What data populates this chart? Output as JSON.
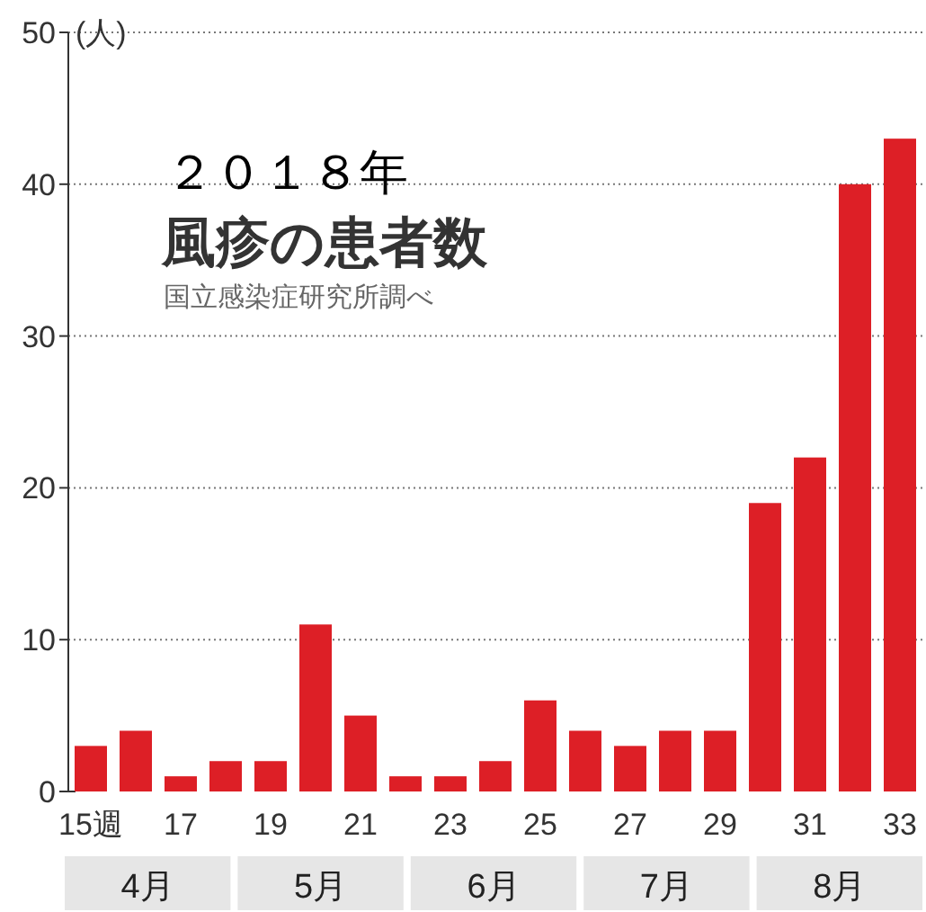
{
  "chart_data": {
    "type": "bar",
    "title": "２０１８年",
    "subtitle": "風疹の患者数",
    "ylabel": "(人)",
    "categories": [
      "15週",
      null,
      "17",
      null,
      "19",
      null,
      "21",
      null,
      "23",
      null,
      "25",
      null,
      "27",
      null,
      "29",
      null,
      "31",
      null,
      "33"
    ],
    "values": [
      3,
      4,
      1,
      2,
      2,
      11,
      5,
      1,
      1,
      2,
      6,
      4,
      3,
      4,
      4,
      19,
      22,
      40,
      43
    ],
    "color": "#dd1f26",
    "ylim": [
      0,
      50
    ],
    "yticks": [
      0,
      10,
      20,
      30,
      40,
      50
    ],
    "grid": "y",
    "annotations": [
      "国立感染症研究所調べ",
      "4月",
      "5月",
      "6月",
      "7月",
      "8月"
    ]
  }
}
